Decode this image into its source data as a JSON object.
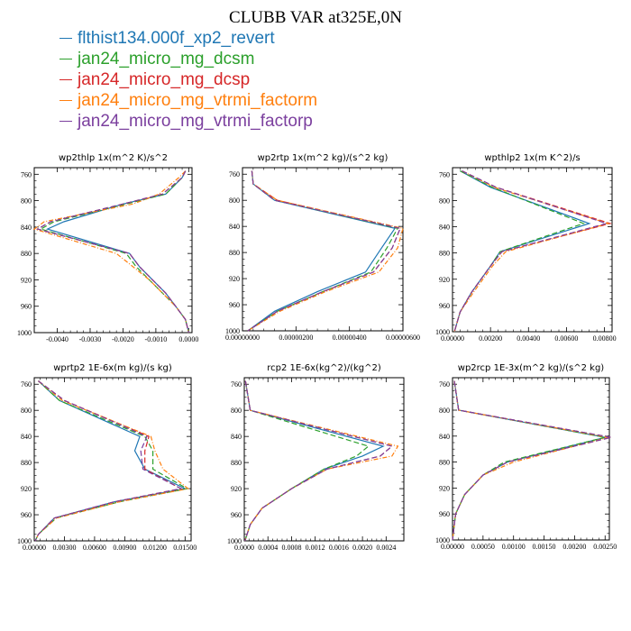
{
  "title": "CLUBB VAR at325E,0N",
  "legend": [
    {
      "name": "flthist134.000f_xp2_revert",
      "color": "#1f77b4",
      "dash": ""
    },
    {
      "name": "jan24_micro_mg_dcsm",
      "color": "#2ca02c",
      "dash": "6,3"
    },
    {
      "name": "jan24_micro_mg_dcsp",
      "color": "#d62728",
      "dash": "6,3"
    },
    {
      "name": "jan24_micro_mg_vtrmi_factorm",
      "color": "#ff7f0e",
      "dash": "5,2,1,2"
    },
    {
      "name": "jan24_micro_mg_vtrmi_factorp",
      "color": "#7b3f9e",
      "dash": "6,3"
    }
  ],
  "chart_data": [
    {
      "type": "line",
      "title": "wp2thlp   1x(m^2 K)/s^2",
      "xlim": [
        -0.0047,
        0.0001
      ],
      "ylim": [
        1000,
        750
      ],
      "xticks": [
        -0.004,
        -0.003,
        -0.002,
        -0.001,
        0.0
      ],
      "xtick_labels": [
        "-0.0040",
        "-0.0030",
        "-0.0020",
        "-0.0010",
        "0.0000"
      ],
      "yticks": [
        760,
        800,
        840,
        880,
        920,
        960,
        1000
      ],
      "y": [
        755,
        765,
        790,
        805,
        832,
        843,
        880,
        900,
        920,
        940,
        960,
        980,
        1000
      ],
      "series": [
        {
          "values": [
            -0.0001,
            -0.0002,
            -0.0007,
            -0.002,
            -0.0038,
            -0.0043,
            -0.0018,
            -0.0015,
            -0.0011,
            -0.0007,
            -0.0004,
            -0.0001,
            0.0
          ]
        },
        {
          "values": [
            -0.0001,
            -0.0002,
            -0.0007,
            -0.0019,
            -0.0041,
            -0.0045,
            -0.0019,
            -0.0016,
            -0.0012,
            -0.0008,
            -0.0004,
            -0.0001,
            0.0
          ]
        },
        {
          "values": [
            -0.0001,
            -0.0002,
            -0.0008,
            -0.002,
            -0.0042,
            -0.0046,
            -0.0018,
            -0.0015,
            -0.0011,
            -0.0007,
            -0.0004,
            -0.0001,
            0.0
          ]
        },
        {
          "values": [
            -0.0001,
            -0.0003,
            -0.0009,
            -0.0017,
            -0.0044,
            -0.0047,
            -0.0022,
            -0.0017,
            -0.0012,
            -0.0008,
            -0.0004,
            -0.0001,
            0.0
          ]
        },
        {
          "values": [
            -0.0001,
            -0.0002,
            -0.0008,
            -0.002,
            -0.0042,
            -0.0046,
            -0.0018,
            -0.0015,
            -0.0011,
            -0.0007,
            -0.0004,
            -0.0001,
            0.0
          ]
        }
      ]
    },
    {
      "type": "line",
      "title": "wp2rtp   1x(m^2 kg)/(s^2 kg)",
      "xlim": [
        0,
        6e-06
      ],
      "ylim": [
        1000,
        750
      ],
      "xticks": [
        0,
        2e-06,
        4e-06,
        6e-06
      ],
      "xtick_labels": [
        "0.00000000",
        "0.00000200",
        "0.00000400",
        "0.00000600"
      ],
      "yticks": [
        760,
        800,
        840,
        880,
        920,
        960,
        1000
      ],
      "y": [
        755,
        775,
        800,
        843,
        873,
        910,
        940,
        970,
        1000
      ],
      "series": [
        {
          "values": [
            3.5e-07,
            4e-07,
            1.2e-06,
            5.7e-06,
            5.2e-06,
            4.6e-06,
            2.8e-06,
            1.2e-06,
            2e-07
          ]
        },
        {
          "values": [
            3.5e-07,
            4e-07,
            1.2e-06,
            5.8e-06,
            5.4e-06,
            4.8e-06,
            3e-06,
            1.3e-06,
            2e-07
          ]
        },
        {
          "values": [
            3.5e-07,
            4e-07,
            1.3e-06,
            5.9e-06,
            5.6e-06,
            4.9e-06,
            3e-06,
            1.3e-06,
            2e-07
          ]
        },
        {
          "values": [
            3.5e-07,
            4e-07,
            1.3e-06,
            6e-06,
            5.8e-06,
            5.1e-06,
            3.1e-06,
            1.4e-06,
            2e-07
          ]
        },
        {
          "values": [
            3.5e-07,
            4e-07,
            1.2e-06,
            5.9e-06,
            5.6e-06,
            4.9e-06,
            3e-06,
            1.3e-06,
            2e-07
          ]
        }
      ]
    },
    {
      "type": "line",
      "title": "wpthlp2   1x(m K^2)/s",
      "xlim": [
        0,
        0.0084
      ],
      "ylim": [
        1000,
        750
      ],
      "xticks": [
        0,
        0.002,
        0.004,
        0.006,
        0.008
      ],
      "xtick_labels": [
        "0.00000",
        "0.00200",
        "0.00400",
        "0.00600",
        "0.00800"
      ],
      "yticks": [
        760,
        800,
        840,
        880,
        920,
        960,
        1000
      ],
      "y": [
        755,
        780,
        835,
        878,
        900,
        940,
        970,
        1000
      ],
      "series": [
        {
          "values": [
            0.0004,
            0.002,
            0.0072,
            0.0025,
            0.002,
            0.001,
            0.0004,
            0.0001
          ]
        },
        {
          "values": [
            0.0004,
            0.0021,
            0.0069,
            0.0025,
            0.002,
            0.001,
            0.0004,
            0.0001
          ]
        },
        {
          "values": [
            0.0005,
            0.0023,
            0.0083,
            0.0026,
            0.002,
            0.001,
            0.0004,
            0.0001
          ]
        },
        {
          "values": [
            0.0005,
            0.0022,
            0.0082,
            0.0028,
            0.0021,
            0.0011,
            0.0004,
            0.0001
          ]
        },
        {
          "values": [
            0.0005,
            0.0023,
            0.0081,
            0.0026,
            0.002,
            0.001,
            0.0004,
            0.0001
          ]
        }
      ]
    },
    {
      "type": "line",
      "title": "wprtp2   1E-6x(m kg)/(s kg)",
      "xlim": [
        0,
        0.0156
      ],
      "ylim": [
        1000,
        750
      ],
      "xticks": [
        0,
        0.003,
        0.006,
        0.009,
        0.012,
        0.015
      ],
      "xtick_labels": [
        "0.00000",
        "0.00300",
        "0.00600",
        "0.00900",
        "0.01200",
        "0.01500"
      ],
      "yticks": [
        760,
        800,
        840,
        880,
        920,
        960,
        1000
      ],
      "y": [
        755,
        785,
        840,
        862,
        890,
        920,
        940,
        965,
        990,
        1000
      ],
      "series": [
        {
          "values": [
            0.0004,
            0.0025,
            0.0105,
            0.01,
            0.011,
            0.015,
            0.008,
            0.002,
            0.0004,
            0.0001
          ]
        },
        {
          "values": [
            0.0004,
            0.0025,
            0.011,
            0.0118,
            0.0118,
            0.0152,
            0.0085,
            0.0022,
            0.0004,
            0.0001
          ]
        },
        {
          "values": [
            0.0004,
            0.003,
            0.0114,
            0.011,
            0.011,
            0.0146,
            0.008,
            0.002,
            0.0004,
            0.0001
          ]
        },
        {
          "values": [
            0.0004,
            0.0028,
            0.0116,
            0.012,
            0.0128,
            0.0153,
            0.0085,
            0.0022,
            0.0004,
            0.0001
          ]
        },
        {
          "values": [
            0.0004,
            0.003,
            0.0112,
            0.0106,
            0.0108,
            0.0146,
            0.008,
            0.002,
            0.0004,
            0.0001
          ]
        }
      ]
    },
    {
      "type": "line",
      "title": "rcp2   1E-6x(kg^2)/(kg^2)",
      "xlim": [
        0,
        0.0027
      ],
      "ylim": [
        1000,
        750
      ],
      "xticks": [
        0,
        0.0004,
        0.0008,
        0.0012,
        0.0016,
        0.002,
        0.0024
      ],
      "xtick_labels": [
        "0.0000",
        "0.0004",
        "0.0008",
        "0.0012",
        "0.0016",
        "0.0020",
        "0.0024"
      ],
      "yticks": [
        760,
        800,
        840,
        880,
        920,
        960,
        1000
      ],
      "y": [
        755,
        800,
        855,
        870,
        890,
        920,
        950,
        975,
        1000
      ],
      "series": [
        {
          "values": [
            2e-05,
            0.0001,
            0.00235,
            0.002,
            0.00135,
            0.0008,
            0.0003,
            0.0001,
            1e-05
          ]
        },
        {
          "values": [
            2e-05,
            0.0001,
            0.0021,
            0.0019,
            0.00135,
            0.0008,
            0.0003,
            0.0001,
            1e-05
          ]
        },
        {
          "values": [
            2e-05,
            0.0001,
            0.0025,
            0.0023,
            0.0014,
            0.0008,
            0.0003,
            0.0001,
            1e-05
          ]
        },
        {
          "values": [
            2e-05,
            0.0001,
            0.0026,
            0.0025,
            0.0014,
            0.0008,
            0.0003,
            0.0001,
            1e-05
          ]
        },
        {
          "values": [
            2e-05,
            0.0001,
            0.0025,
            0.0023,
            0.0014,
            0.0008,
            0.0003,
            0.0001,
            1e-05
          ]
        }
      ]
    },
    {
      "type": "line",
      "title": "wp2rcp   1E-3x(m^2 kg)/(s^2 kg)",
      "xlim": [
        0,
        0.00257
      ],
      "ylim": [
        1000,
        750
      ],
      "xticks": [
        0,
        0.0005,
        0.001,
        0.0015,
        0.002,
        0.0025
      ],
      "xtick_labels": [
        "0.00000",
        "0.00050",
        "0.00100",
        "0.00150",
        "0.00200",
        "0.00250"
      ],
      "yticks": [
        760,
        800,
        840,
        880,
        920,
        960,
        1000
      ],
      "y": [
        755,
        800,
        842,
        880,
        900,
        930,
        960,
        1000
      ],
      "series": [
        {
          "values": [
            3e-05,
            0.0001,
            0.0025,
            0.0009,
            0.0005,
            0.0002,
            5e-05,
            0.0
          ]
        },
        {
          "values": [
            3e-05,
            0.0001,
            0.0025,
            0.00085,
            0.0005,
            0.0002,
            5e-05,
            0.0
          ]
        },
        {
          "values": [
            3e-05,
            0.0001,
            0.0026,
            0.0009,
            0.0005,
            0.0002,
            5e-05,
            0.0
          ]
        },
        {
          "values": [
            3e-05,
            0.0001,
            0.00255,
            0.001,
            0.0005,
            0.0002,
            5e-05,
            0.0
          ]
        },
        {
          "values": [
            3e-05,
            0.0001,
            0.0026,
            0.0009,
            0.0005,
            0.0002,
            5e-05,
            0.0
          ]
        }
      ]
    }
  ]
}
